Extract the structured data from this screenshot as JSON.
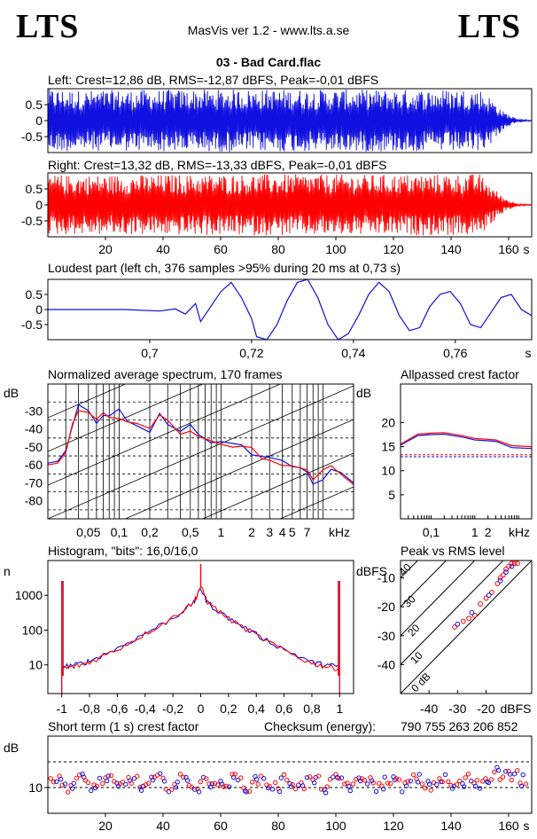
{
  "header": {
    "logo_left": "LTS",
    "logo_right": "LTS",
    "app_title": "MasVis ver 1.2 - www.lts.a.se",
    "file_title": "03 - Bad Card.flac"
  },
  "colors": {
    "left": "#1010e0",
    "right": "#ff0000",
    "grid": "#000000"
  },
  "chart_data": [
    {
      "id": "waveform-left",
      "type": "area",
      "title": "Left: Crest=12,86 dB, RMS=-12,87 dBFS, Peak=-0,01 dBFS",
      "x_unit": "s",
      "xlim": [
        0,
        168
      ],
      "ylim": [
        -1,
        1
      ],
      "y_ticks": [
        "0.5",
        "0",
        "-0.5"
      ],
      "envelope": [
        {
          "t": 0,
          "amp": 1.0
        },
        {
          "t": 10,
          "amp": 0.95
        },
        {
          "t": 40,
          "amp": 0.97
        },
        {
          "t": 80,
          "amp": 0.98
        },
        {
          "t": 120,
          "amp": 0.97
        },
        {
          "t": 150,
          "amp": 0.98
        },
        {
          "t": 154,
          "amp": 0.7
        },
        {
          "t": 158,
          "amp": 0.3
        },
        {
          "t": 163,
          "amp": 0.05
        },
        {
          "t": 168,
          "amp": 0.01
        }
      ]
    },
    {
      "id": "waveform-right",
      "type": "area",
      "title": "Right: Crest=13,32 dB, RMS=-13,33 dBFS, Peak=-0,01 dBFS",
      "x_unit": "s",
      "xlim": [
        0,
        168
      ],
      "ylim": [
        -1,
        1
      ],
      "y_ticks": [
        "0.5",
        "0",
        "-0.5"
      ],
      "x_ticks": [
        "20",
        "40",
        "60",
        "80",
        "100",
        "120",
        "140",
        "160"
      ],
      "envelope": [
        {
          "t": 0,
          "amp": 0.95
        },
        {
          "t": 10,
          "amp": 0.93
        },
        {
          "t": 40,
          "amp": 0.95
        },
        {
          "t": 80,
          "amp": 0.96
        },
        {
          "t": 120,
          "amp": 0.95
        },
        {
          "t": 150,
          "amp": 0.97
        },
        {
          "t": 154,
          "amp": 0.6
        },
        {
          "t": 158,
          "amp": 0.25
        },
        {
          "t": 163,
          "amp": 0.04
        },
        {
          "t": 168,
          "amp": 0.01
        }
      ]
    },
    {
      "id": "loudest-part",
      "type": "line",
      "title": "Loudest part (left  ch, 376 samples >95% during 20 ms at 0,73 s)",
      "x_unit": "s",
      "xlim": [
        0.68,
        0.775
      ],
      "ylim": [
        -1,
        1
      ],
      "y_ticks": [
        "0.5",
        "0",
        "-0.5"
      ],
      "x_ticks": [
        "0,7",
        "0,72",
        "0,74",
        "0,76"
      ],
      "points": [
        [
          0.68,
          0.0
        ],
        [
          0.695,
          0.0
        ],
        [
          0.702,
          -0.05
        ],
        [
          0.705,
          0.02
        ],
        [
          0.707,
          -0.15
        ],
        [
          0.709,
          0.2
        ],
        [
          0.71,
          -0.4
        ],
        [
          0.712,
          0.1
        ],
        [
          0.714,
          0.6
        ],
        [
          0.716,
          0.9
        ],
        [
          0.718,
          0.4
        ],
        [
          0.72,
          -0.3
        ],
        [
          0.721,
          -0.9
        ],
        [
          0.723,
          -1.0
        ],
        [
          0.725,
          -0.5
        ],
        [
          0.727,
          0.3
        ],
        [
          0.729,
          0.9
        ],
        [
          0.731,
          1.0
        ],
        [
          0.733,
          0.4
        ],
        [
          0.735,
          -0.5
        ],
        [
          0.737,
          -1.0
        ],
        [
          0.739,
          -0.8
        ],
        [
          0.741,
          -0.2
        ],
        [
          0.743,
          0.5
        ],
        [
          0.745,
          0.9
        ],
        [
          0.747,
          0.6
        ],
        [
          0.749,
          -0.2
        ],
        [
          0.751,
          -0.7
        ],
        [
          0.753,
          -0.6
        ],
        [
          0.755,
          0.1
        ],
        [
          0.757,
          0.5
        ],
        [
          0.759,
          0.6
        ],
        [
          0.761,
          0.2
        ],
        [
          0.763,
          -0.5
        ],
        [
          0.765,
          -0.6
        ],
        [
          0.767,
          -0.1
        ],
        [
          0.769,
          0.4
        ],
        [
          0.771,
          0.5
        ],
        [
          0.773,
          0.0
        ],
        [
          0.775,
          -0.2
        ]
      ]
    },
    {
      "id": "spectrum",
      "type": "line",
      "title": "Normalized average spectrum, 170 frames",
      "xlabel": "kHz",
      "ylabel": "dB",
      "xscale": "log",
      "xlim": [
        0.02,
        20
      ],
      "ylim": [
        -90,
        -15
      ],
      "y_ticks": [
        "-30",
        "-40",
        "-50",
        "-60",
        "-70",
        "-80"
      ],
      "x_ticks": [
        "0,05",
        "0,1",
        "0,2",
        "0,5",
        "1",
        "2",
        "3",
        "4",
        "5",
        "7"
      ],
      "series": [
        {
          "color_key": "left",
          "points": [
            [
              0.02,
              -59
            ],
            [
              0.025,
              -58
            ],
            [
              0.03,
              -52
            ],
            [
              0.035,
              -38
            ],
            [
              0.04,
              -29
            ],
            [
              0.05,
              -32
            ],
            [
              0.06,
              -34
            ],
            [
              0.07,
              -30
            ],
            [
              0.08,
              -33
            ],
            [
              0.1,
              -31
            ],
            [
              0.12,
              -36
            ],
            [
              0.15,
              -38
            ],
            [
              0.2,
              -42
            ],
            [
              0.25,
              -30
            ],
            [
              0.3,
              -38
            ],
            [
              0.4,
              -44
            ],
            [
              0.5,
              -40
            ],
            [
              0.6,
              -45
            ],
            [
              0.8,
              -46
            ],
            [
              1.0,
              -48
            ],
            [
              1.3,
              -49
            ],
            [
              1.6,
              -51
            ],
            [
              2.0,
              -53
            ],
            [
              2.5,
              -55
            ],
            [
              3.0,
              -56
            ],
            [
              4.0,
              -58
            ],
            [
              5.0,
              -61
            ],
            [
              6.0,
              -63
            ],
            [
              7.0,
              -66
            ],
            [
              8.0,
              -68
            ],
            [
              10.0,
              -66
            ],
            [
              12.0,
              -64
            ],
            [
              15.0,
              -66
            ],
            [
              20.0,
              -70
            ]
          ]
        },
        {
          "color_key": "right",
          "points": [
            [
              0.02,
              -60
            ],
            [
              0.025,
              -59
            ],
            [
              0.03,
              -53
            ],
            [
              0.035,
              -37
            ],
            [
              0.04,
              -30
            ],
            [
              0.05,
              -31
            ],
            [
              0.06,
              -35
            ],
            [
              0.07,
              -29
            ],
            [
              0.08,
              -32
            ],
            [
              0.1,
              -32
            ],
            [
              0.12,
              -35
            ],
            [
              0.15,
              -39
            ],
            [
              0.2,
              -41
            ],
            [
              0.25,
              -33
            ],
            [
              0.3,
              -37
            ],
            [
              0.4,
              -45
            ],
            [
              0.5,
              -41
            ],
            [
              0.6,
              -44
            ],
            [
              0.8,
              -47
            ],
            [
              1.0,
              -47
            ],
            [
              1.3,
              -50
            ],
            [
              1.6,
              -52
            ],
            [
              2.0,
              -52
            ],
            [
              2.5,
              -56
            ],
            [
              3.0,
              -55
            ],
            [
              4.0,
              -59
            ],
            [
              5.0,
              -60
            ],
            [
              6.0,
              -64
            ],
            [
              7.0,
              -65
            ],
            [
              8.0,
              -67
            ],
            [
              10.0,
              -65
            ],
            [
              12.0,
              -63
            ],
            [
              15.0,
              -67
            ],
            [
              20.0,
              -71
            ]
          ]
        }
      ]
    },
    {
      "id": "allpassed-crest",
      "type": "line",
      "title": "Allpassed crest factor",
      "xlabel": "kHz",
      "ylabel": "dB",
      "xscale": "log",
      "xlim": [
        0.02,
        20
      ],
      "ylim": [
        0,
        28
      ],
      "y_ticks": [
        "20",
        "15",
        "10",
        "5"
      ],
      "x_ticks": [
        "0,1",
        "1",
        "2",
        "kHz"
      ],
      "reference_lines": [
        13.3,
        12.9
      ],
      "series": [
        {
          "color_key": "left",
          "points": [
            [
              0.02,
              15.3
            ],
            [
              0.05,
              17.3
            ],
            [
              0.1,
              17.5
            ],
            [
              0.2,
              17.6
            ],
            [
              0.5,
              17.0
            ],
            [
              1,
              16.4
            ],
            [
              3,
              16.1
            ],
            [
              7,
              14.8
            ],
            [
              20,
              14.6
            ]
          ]
        },
        {
          "color_key": "right",
          "points": [
            [
              0.02,
              15.5
            ],
            [
              0.05,
              17.6
            ],
            [
              0.1,
              17.8
            ],
            [
              0.2,
              17.9
            ],
            [
              0.5,
              17.3
            ],
            [
              1,
              16.7
            ],
            [
              3,
              16.4
            ],
            [
              7,
              15.2
            ],
            [
              20,
              15.0
            ]
          ]
        }
      ]
    },
    {
      "id": "histogram",
      "type": "line",
      "title": "Histogram, \"bits\": 16,0/16,0",
      "ylabel": "n",
      "yscale": "log",
      "xlim": [
        -1.1,
        1.1
      ],
      "ylim": [
        1.5,
        10000
      ],
      "y_ticks": [
        "1000",
        "100",
        "10"
      ],
      "x_ticks": [
        "-1",
        "-0,8",
        "-0,6",
        "-0,4",
        "-0,2",
        "0",
        "0,2",
        "0,4",
        "0,6",
        "0,8",
        "1"
      ],
      "series": [
        {
          "color_key": "left",
          "points": [
            [
              -1,
              9
            ],
            [
              -0.9,
              10
            ],
            [
              -0.8,
              13
            ],
            [
              -0.6,
              30
            ],
            [
              -0.4,
              80
            ],
            [
              -0.2,
              220
            ],
            [
              -0.05,
              600
            ],
            [
              0,
              1600
            ],
            [
              0.05,
              600
            ],
            [
              0.2,
              220
            ],
            [
              0.4,
              75
            ],
            [
              0.6,
              28
            ],
            [
              0.8,
              12
            ],
            [
              0.9,
              10
            ],
            [
              1,
              9
            ]
          ]
        },
        {
          "color_key": "right",
          "points": [
            [
              -1,
              8
            ],
            [
              -0.9,
              9
            ],
            [
              -0.8,
              12
            ],
            [
              -0.6,
              28
            ],
            [
              -0.4,
              78
            ],
            [
              -0.2,
              230
            ],
            [
              -0.05,
              650
            ],
            [
              0,
              1800
            ],
            [
              0.05,
              640
            ],
            [
              0.2,
              215
            ],
            [
              0.4,
              72
            ],
            [
              0.6,
              26
            ],
            [
              0.8,
              11
            ],
            [
              0.9,
              9
            ],
            [
              1,
              8
            ]
          ]
        }
      ]
    },
    {
      "id": "peak-vs-rms",
      "type": "scatter",
      "title": "Peak vs RMS level",
      "xlabel": "dBFS",
      "ylabel": "dBFS",
      "xlim": [
        -50,
        -4
      ],
      "ylim": [
        -50,
        -4
      ],
      "y_ticks": [
        "-10",
        "-20",
        "-30",
        "-40"
      ],
      "x_ticks": [
        "-40",
        "-30",
        "-20",
        "dBFS"
      ],
      "diagonal_labels": [
        "40",
        "30",
        "20",
        "10",
        "0 dB"
      ],
      "series": [
        {
          "color_key": "right",
          "points": [
            [
              -31,
              -27
            ],
            [
              -28,
              -25
            ],
            [
              -26,
              -24
            ],
            [
              -24,
              -23
            ],
            [
              -22,
              -19
            ],
            [
              -20,
              -17
            ],
            [
              -18,
              -15
            ],
            [
              -16,
              -12
            ],
            [
              -15,
              -10
            ],
            [
              -14,
              -9
            ],
            [
              -13,
              -7
            ],
            [
              -12,
              -6
            ],
            [
              -11,
              -5
            ],
            [
              -10,
              -5
            ],
            [
              -9,
              -5
            ]
          ]
        },
        {
          "color_key": "left",
          "points": [
            [
              -30,
              -26
            ],
            [
              -25,
              -22
            ],
            [
              -19,
              -16
            ],
            [
              -15,
              -11
            ],
            [
              -13,
              -8
            ],
            [
              -11,
              -6
            ]
          ]
        }
      ]
    },
    {
      "id": "short-term-crest",
      "type": "scatter",
      "title": "Short term (1 s) crest factor",
      "ylabel": "dB",
      "x_unit": "s",
      "xlim": [
        0,
        168
      ],
      "ylim": [
        5,
        20
      ],
      "y_ticks": [
        "10"
      ],
      "x_ticks": [
        "20",
        "40",
        "60",
        "80",
        "100",
        "120",
        "140",
        "160"
      ],
      "reference_lines": [
        15,
        10
      ],
      "mean": 11,
      "checksum_label": "Checksum (energy):",
      "checksum_value": "790 755 263 206 852"
    }
  ]
}
